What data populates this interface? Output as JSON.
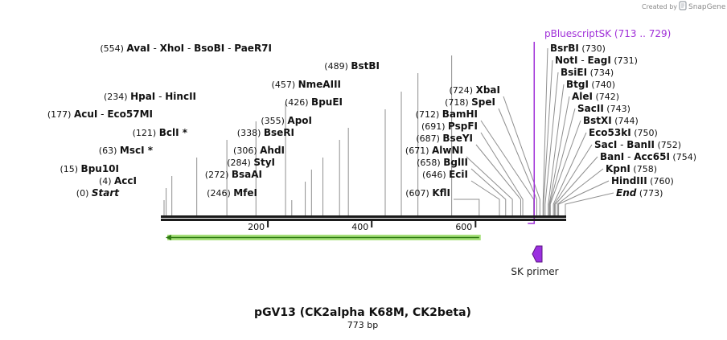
{
  "credit": {
    "created_by": "Created by",
    "brand": "SnapGene"
  },
  "title": "pGV13 (CK2alpha K68M, CK2beta)",
  "subtitle": "773 bp",
  "sequence_length": 773,
  "axis_ticks": [
    {
      "value": 200,
      "label": "200"
    },
    {
      "value": 400,
      "label": "400"
    },
    {
      "value": 600,
      "label": "600"
    }
  ],
  "sites": [
    {
      "label": "(0)",
      "names": [
        "Start"
      ],
      "italic": true,
      "pos": 0
    },
    {
      "label": "(4)",
      "names": [
        "AccI"
      ],
      "pos": 4
    },
    {
      "label": "(15)",
      "names": [
        "Bpu10I"
      ],
      "pos": 15
    },
    {
      "label": "(63)",
      "names": [
        "MscI *"
      ],
      "pos": 63
    },
    {
      "label": "(121)",
      "names": [
        "BclI *"
      ],
      "pos": 121
    },
    {
      "label": "(177)",
      "names": [
        "AcuI",
        "Eco57MI"
      ],
      "pos": 177
    },
    {
      "label": "(234)",
      "names": [
        "HpaI",
        "HincII"
      ],
      "pos": 234
    },
    {
      "label": "(246)",
      "names": [
        "MfeI"
      ],
      "pos": 246
    },
    {
      "label": "(272)",
      "names": [
        "BsaAI"
      ],
      "pos": 272
    },
    {
      "label": "(284)",
      "names": [
        "StyI"
      ],
      "pos": 284
    },
    {
      "label": "(306)",
      "names": [
        "AhdI"
      ],
      "pos": 306
    },
    {
      "label": "(338)",
      "names": [
        "BseRI"
      ],
      "pos": 338
    },
    {
      "label": "(355)",
      "names": [
        "ApoI"
      ],
      "pos": 355
    },
    {
      "label": "(426)",
      "names": [
        "BpuEI"
      ],
      "pos": 426
    },
    {
      "label": "(457)",
      "names": [
        "NmeAIII"
      ],
      "pos": 457
    },
    {
      "label": "(489)",
      "names": [
        "BstBI"
      ],
      "pos": 489
    },
    {
      "label": "(554)",
      "names": [
        "AvaI",
        "XhoI",
        "BsoBI",
        "PaeR7I"
      ],
      "pos": 554
    },
    {
      "label": "(607)",
      "names": [
        "KflI"
      ],
      "pos": 607
    },
    {
      "label": "(646)",
      "names": [
        "EciI"
      ],
      "pos": 646
    },
    {
      "label": "(658)",
      "names": [
        "BglII"
      ],
      "pos": 658
    },
    {
      "label": "(671)",
      "names": [
        "AlwNI"
      ],
      "pos": 671
    },
    {
      "label": "(687)",
      "names": [
        "BseYI"
      ],
      "pos": 687
    },
    {
      "label": "(691)",
      "names": [
        "PspFI"
      ],
      "pos": 691
    },
    {
      "label": "(712)",
      "names": [
        "BamHI"
      ],
      "pos": 712
    },
    {
      "label": "(718)",
      "names": [
        "SpeI"
      ],
      "pos": 718
    },
    {
      "label": "(724)",
      "names": [
        "XbaI"
      ],
      "pos": 724
    },
    {
      "label": "(730)",
      "names": [
        "BsrBI"
      ],
      "pos": 730
    },
    {
      "label": "(731)",
      "names": [
        "NotI",
        "EagI"
      ],
      "pos": 731
    },
    {
      "label": "(734)",
      "names": [
        "BsiEI"
      ],
      "pos": 734
    },
    {
      "label": "(740)",
      "names": [
        "BtgI"
      ],
      "pos": 740
    },
    {
      "label": "(742)",
      "names": [
        "AleI"
      ],
      "pos": 742
    },
    {
      "label": "(743)",
      "names": [
        "SacII"
      ],
      "pos": 743
    },
    {
      "label": "(744)",
      "names": [
        "BstXI"
      ],
      "pos": 744
    },
    {
      "label": "(750)",
      "names": [
        "Eco53kI"
      ],
      "pos": 750
    },
    {
      "label": "(752)",
      "names": [
        "SacI",
        "BanII"
      ],
      "pos": 752
    },
    {
      "label": "(754)",
      "names": [
        "BanI",
        "Acc65I"
      ],
      "pos": 754
    },
    {
      "label": "(758)",
      "names": [
        "KpnI"
      ],
      "pos": 758
    },
    {
      "label": "(760)",
      "names": [
        "HindIII"
      ],
      "pos": 760
    },
    {
      "label": "(773)",
      "names": [
        "End"
      ],
      "italic": true,
      "pos": 773
    }
  ],
  "feature": {
    "name": "pBluescriptSK",
    "range_label": "(713 .. 729)",
    "start": 713,
    "end": 729,
    "color": "#a030d8"
  },
  "primer": {
    "name": "SK primer",
    "color": "#9b30e0"
  },
  "orf": {
    "start": 0,
    "end": 610,
    "direction": "reverse",
    "color": "#a6e07a",
    "stroke": "#2f7a12"
  }
}
